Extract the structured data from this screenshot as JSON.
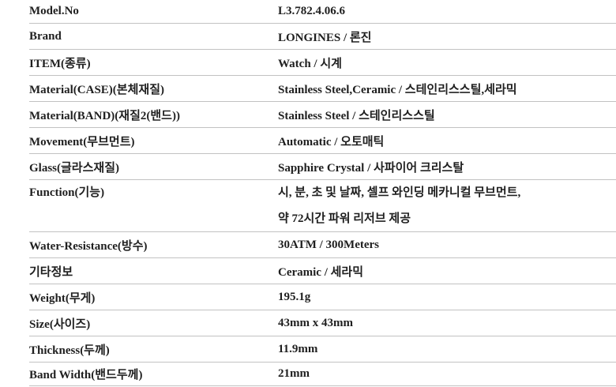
{
  "table": {
    "colors": {
      "background": "#ffffff",
      "text": "#1f1f1f",
      "divider": "#c2c2c2"
    },
    "rows": [
      {
        "label": "Model.No",
        "value": "L3.782.4.06.6"
      },
      {
        "label": "Brand",
        "value": "LONGINES / 론진"
      },
      {
        "label": "ITEM(종류)",
        "value": "Watch / 시계"
      },
      {
        "label": "Material(CASE)(본체재질)",
        "value": "Stainless Steel,Ceramic / 스테인리스스틸,세라믹"
      },
      {
        "label": "Material(BAND)(재질2(밴드))",
        "value": "Stainless Steel / 스테인리스스틸"
      },
      {
        "label": "Movement(무브먼트)",
        "value": "Automatic / 오토매틱"
      },
      {
        "label": "Glass(글라스재질)",
        "value": "Sapphire Crystal / 사파이어 크리스탈"
      },
      {
        "label": "Function(기능)",
        "value": "시, 분, 초 및 날짜, 셀프 와인딩 메카니컬 무브먼트, 약 72시간 파워 리저브 제공",
        "multiline": true
      },
      {
        "label": "Water-Resistance(방수)",
        "value": "30ATM / 300Meters"
      },
      {
        "label": "기타정보",
        "value": "Ceramic / 세라믹"
      },
      {
        "label": "Weight(무게)",
        "value": "195.1g"
      },
      {
        "label": "Size(사이즈)",
        "value": "43mm x 43mm"
      },
      {
        "label": "Thickness(두께)",
        "value": "11.9mm"
      },
      {
        "label": "Band Width(밴드두께)",
        "value": "21mm"
      }
    ]
  }
}
